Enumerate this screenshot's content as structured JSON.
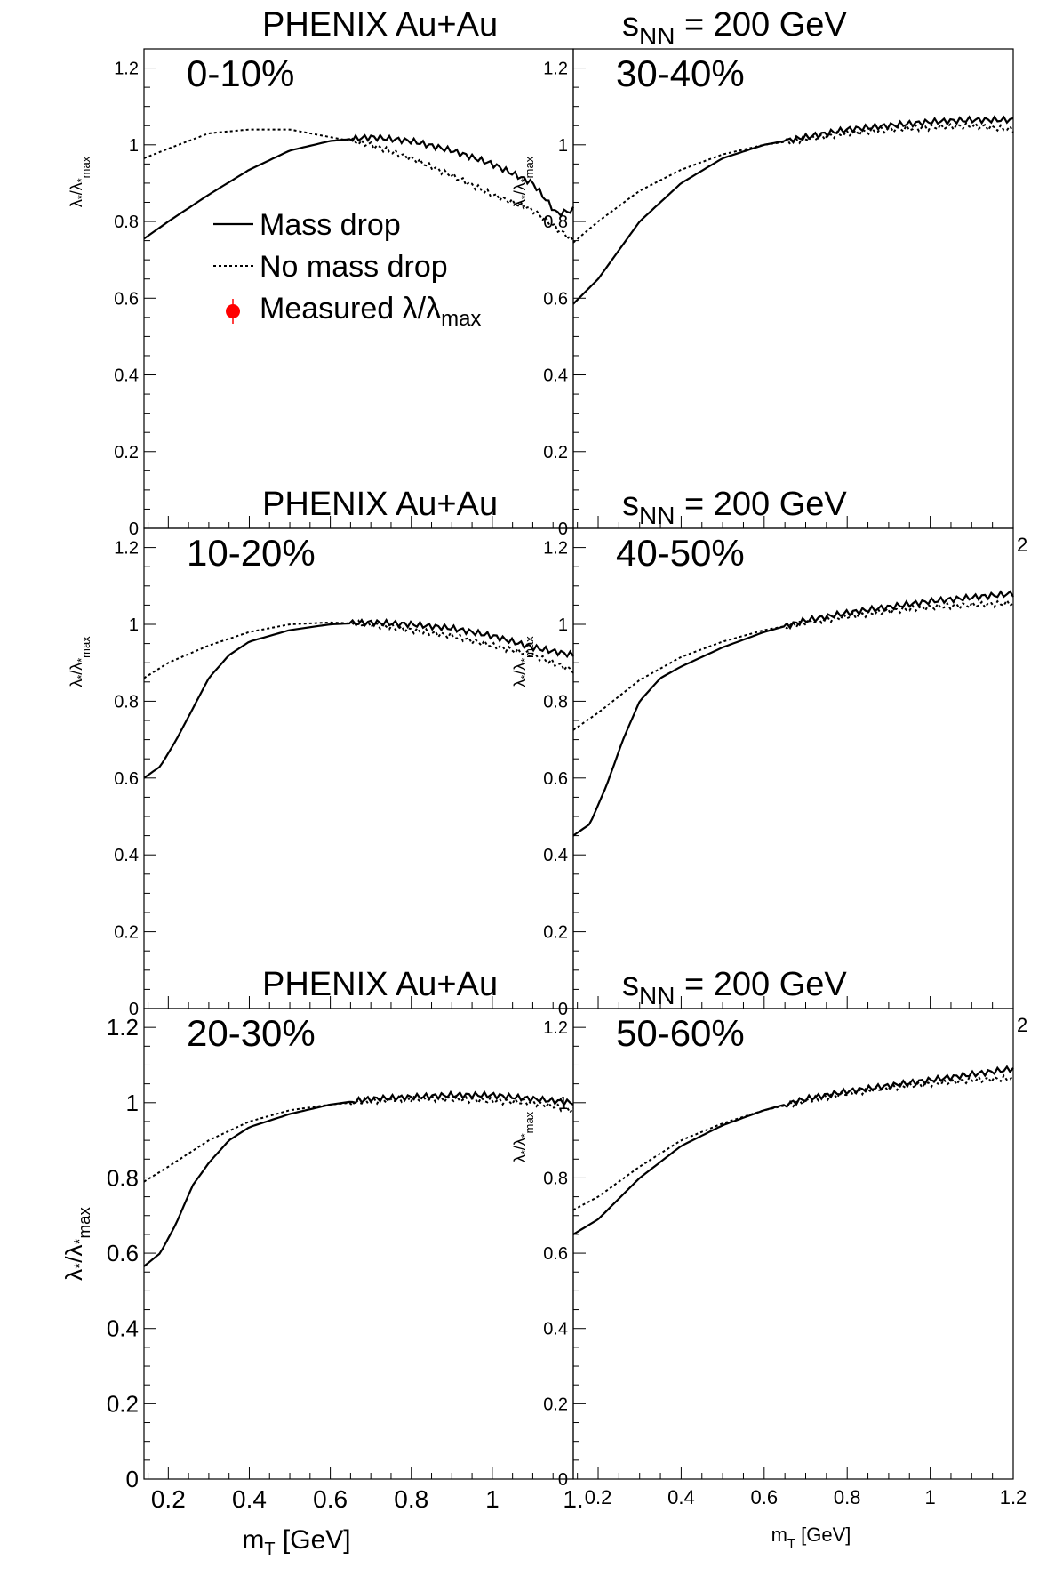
{
  "chart_data": [
    {
      "type": "line",
      "header_left": "PHENIX Au+Au",
      "header_right_main": "s",
      "header_right_sub": "NN",
      "header_right_rest": " = 200 GeV",
      "panel_label": "0-10%",
      "xlabel": "",
      "ylabel": "λ*/λ*max",
      "xlim": [
        0.14,
        1.2
      ],
      "ylim": [
        0,
        1.25
      ],
      "legend": {
        "items": [
          "Mass drop",
          "No mass drop",
          "Measured λ/λmax"
        ]
      },
      "series": [
        {
          "name": "Mass drop",
          "style": "solid",
          "x": [
            0.14,
            0.2,
            0.3,
            0.4,
            0.5,
            0.6,
            0.7,
            0.8,
            0.9,
            1.0,
            1.1,
            1.16,
            1.2
          ],
          "y": [
            0.755,
            0.8,
            0.87,
            0.935,
            0.985,
            1.01,
            1.02,
            1.01,
            0.985,
            0.95,
            0.9,
            0.82,
            0.83
          ]
        },
        {
          "name": "No mass drop",
          "style": "dotted",
          "x": [
            0.14,
            0.2,
            0.3,
            0.4,
            0.5,
            0.6,
            0.7,
            0.8,
            0.9,
            1.0,
            1.1,
            1.2
          ],
          "y": [
            0.965,
            0.99,
            1.03,
            1.04,
            1.04,
            1.02,
            1.0,
            0.965,
            0.92,
            0.87,
            0.83,
            0.75
          ]
        }
      ],
      "yticks": [
        "0",
        "0.2",
        "0.4",
        "0.6",
        "0.8",
        "1",
        "1.2"
      ],
      "xticks": []
    },
    {
      "type": "line",
      "header_left": "",
      "header_right_main": "",
      "header_right_sub": "",
      "header_right_rest": "",
      "panel_label": "30-40%",
      "xlabel": "",
      "ylabel": "λ*/λ*max",
      "xlim": [
        0.14,
        1.2
      ],
      "ylim": [
        0,
        1.25
      ],
      "series": [
        {
          "name": "Mass drop",
          "style": "solid",
          "x": [
            0.14,
            0.2,
            0.3,
            0.4,
            0.5,
            0.6,
            0.7,
            0.8,
            0.9,
            1.0,
            1.1,
            1.2
          ],
          "y": [
            0.585,
            0.65,
            0.8,
            0.9,
            0.965,
            1.0,
            1.02,
            1.04,
            1.05,
            1.06,
            1.065,
            1.065
          ]
        },
        {
          "name": "No mass drop",
          "style": "dotted",
          "x": [
            0.14,
            0.2,
            0.3,
            0.4,
            0.5,
            0.6,
            0.7,
            0.8,
            0.9,
            1.0,
            1.1,
            1.2
          ],
          "y": [
            0.745,
            0.8,
            0.88,
            0.935,
            0.975,
            1.0,
            1.015,
            1.03,
            1.04,
            1.045,
            1.05,
            1.04
          ]
        }
      ],
      "yticks": [
        "0",
        "0.2",
        "0.4",
        "0.6",
        "0.8",
        "1",
        "1.2"
      ],
      "xticks": []
    },
    {
      "type": "line",
      "header_left": "PHENIX Au+Au",
      "header_right_main": "s",
      "header_right_sub": "NN",
      "header_right_rest": " = 200 GeV",
      "panel_label": "10-20%",
      "xlabel": "",
      "ylabel": "λ*/λ*max",
      "xlim": [
        0.14,
        1.2
      ],
      "ylim": [
        0,
        1.25
      ],
      "series": [
        {
          "name": "Mass drop",
          "style": "solid",
          "x": [
            0.14,
            0.18,
            0.22,
            0.26,
            0.3,
            0.35,
            0.4,
            0.5,
            0.6,
            0.7,
            0.8,
            0.9,
            1.0,
            1.1,
            1.2
          ],
          "y": [
            0.6,
            0.63,
            0.7,
            0.78,
            0.86,
            0.92,
            0.955,
            0.985,
            1.0,
            1.005,
            1.0,
            0.99,
            0.97,
            0.94,
            0.92
          ]
        },
        {
          "name": "No mass drop",
          "style": "dotted",
          "x": [
            0.14,
            0.2,
            0.3,
            0.4,
            0.5,
            0.6,
            0.7,
            0.8,
            0.9,
            1.0,
            1.1,
            1.2
          ],
          "y": [
            0.86,
            0.9,
            0.945,
            0.98,
            1.0,
            1.005,
            1.0,
            0.985,
            0.97,
            0.945,
            0.92,
            0.88
          ]
        }
      ],
      "yticks": [
        "0",
        "0.2",
        "0.4",
        "0.6",
        "0.8",
        "1",
        "1.2"
      ],
      "xticks": []
    },
    {
      "type": "line",
      "header_left": "",
      "header_right_main": "",
      "header_right_sub": "",
      "header_right_rest": "",
      "panel_label": "40-50%",
      "xlabel": "",
      "ylabel": "λ*/λ*max",
      "xlim": [
        0.14,
        1.2
      ],
      "ylim": [
        0,
        1.25
      ],
      "series": [
        {
          "name": "Mass drop",
          "style": "solid",
          "x": [
            0.14,
            0.18,
            0.22,
            0.26,
            0.3,
            0.35,
            0.4,
            0.5,
            0.6,
            0.7,
            0.8,
            0.9,
            1.0,
            1.1,
            1.2
          ],
          "y": [
            0.45,
            0.48,
            0.58,
            0.7,
            0.8,
            0.86,
            0.89,
            0.94,
            0.98,
            1.01,
            1.03,
            1.045,
            1.06,
            1.07,
            1.08
          ]
        },
        {
          "name": "No mass drop",
          "style": "dotted",
          "x": [
            0.14,
            0.2,
            0.3,
            0.4,
            0.5,
            0.6,
            0.7,
            0.8,
            0.9,
            1.0,
            1.1,
            1.2
          ],
          "y": [
            0.725,
            0.77,
            0.855,
            0.915,
            0.955,
            0.985,
            1.005,
            1.02,
            1.035,
            1.045,
            1.05,
            1.055
          ]
        }
      ],
      "yticks": [
        "0",
        "0.2",
        "0.4",
        "0.6",
        "0.8",
        "1",
        "1.2"
      ],
      "xticks": []
    },
    {
      "type": "line",
      "header_left": "PHENIX Au+Au",
      "header_right_main": "s",
      "header_right_sub": "NN",
      "header_right_rest": " = 200 GeV",
      "panel_label": "20-30%",
      "xlabel": "mT [GeV]",
      "ylabel": "λ*/λ*max",
      "xlim": [
        0.14,
        1.2
      ],
      "ylim": [
        0,
        1.25
      ],
      "series": [
        {
          "name": "Mass drop",
          "style": "solid",
          "x": [
            0.14,
            0.18,
            0.22,
            0.26,
            0.3,
            0.35,
            0.4,
            0.5,
            0.6,
            0.7,
            0.8,
            0.9,
            1.0,
            1.1,
            1.2
          ],
          "y": [
            0.565,
            0.6,
            0.68,
            0.78,
            0.84,
            0.9,
            0.935,
            0.97,
            0.995,
            1.01,
            1.015,
            1.02,
            1.02,
            1.01,
            1.0
          ]
        },
        {
          "name": "No mass drop",
          "style": "dotted",
          "x": [
            0.14,
            0.2,
            0.3,
            0.4,
            0.5,
            0.6,
            0.7,
            0.8,
            0.9,
            1.0,
            1.1,
            1.2
          ],
          "y": [
            0.79,
            0.83,
            0.9,
            0.95,
            0.98,
            0.995,
            1.005,
            1.01,
            1.01,
            1.005,
            1.0,
            0.98
          ]
        }
      ],
      "yticks": [
        "0",
        "0.2",
        "0.4",
        "0.6",
        "0.8",
        "1",
        "1.2"
      ],
      "xticks": [
        "0.2",
        "0.4",
        "0.6",
        "0.8",
        "1",
        "1."
      ]
    },
    {
      "type": "line",
      "header_left": "",
      "header_right_main": "",
      "header_right_sub": "",
      "header_right_rest": "",
      "panel_label": "50-60%",
      "xlabel": "mT [GeV]",
      "ylabel": "λ*/λ*max",
      "xlim": [
        0.14,
        1.2
      ],
      "ylim": [
        0,
        1.25
      ],
      "series": [
        {
          "name": "Mass drop",
          "style": "solid",
          "x": [
            0.14,
            0.2,
            0.3,
            0.4,
            0.5,
            0.6,
            0.7,
            0.8,
            0.9,
            1.0,
            1.1,
            1.2
          ],
          "y": [
            0.65,
            0.69,
            0.8,
            0.885,
            0.94,
            0.98,
            1.01,
            1.03,
            1.045,
            1.06,
            1.075,
            1.09
          ]
        },
        {
          "name": "No mass drop",
          "style": "dotted",
          "x": [
            0.14,
            0.2,
            0.3,
            0.4,
            0.5,
            0.6,
            0.7,
            0.8,
            0.9,
            1.0,
            1.1,
            1.2
          ],
          "y": [
            0.715,
            0.75,
            0.83,
            0.9,
            0.945,
            0.98,
            1.005,
            1.025,
            1.04,
            1.05,
            1.06,
            1.065
          ]
        }
      ],
      "yticks": [
        "0",
        "0.2",
        "0.4",
        "0.6",
        "0.8",
        "1",
        "1.2"
      ],
      "xticks": [
        "0.2",
        "0.4",
        "0.6",
        "0.8",
        "1",
        "1.2"
      ]
    }
  ],
  "overflow_labels": [
    "2",
    "2"
  ],
  "colors": {
    "line": "#000000",
    "marker": "#ff0000",
    "background": "#ffffff"
  }
}
